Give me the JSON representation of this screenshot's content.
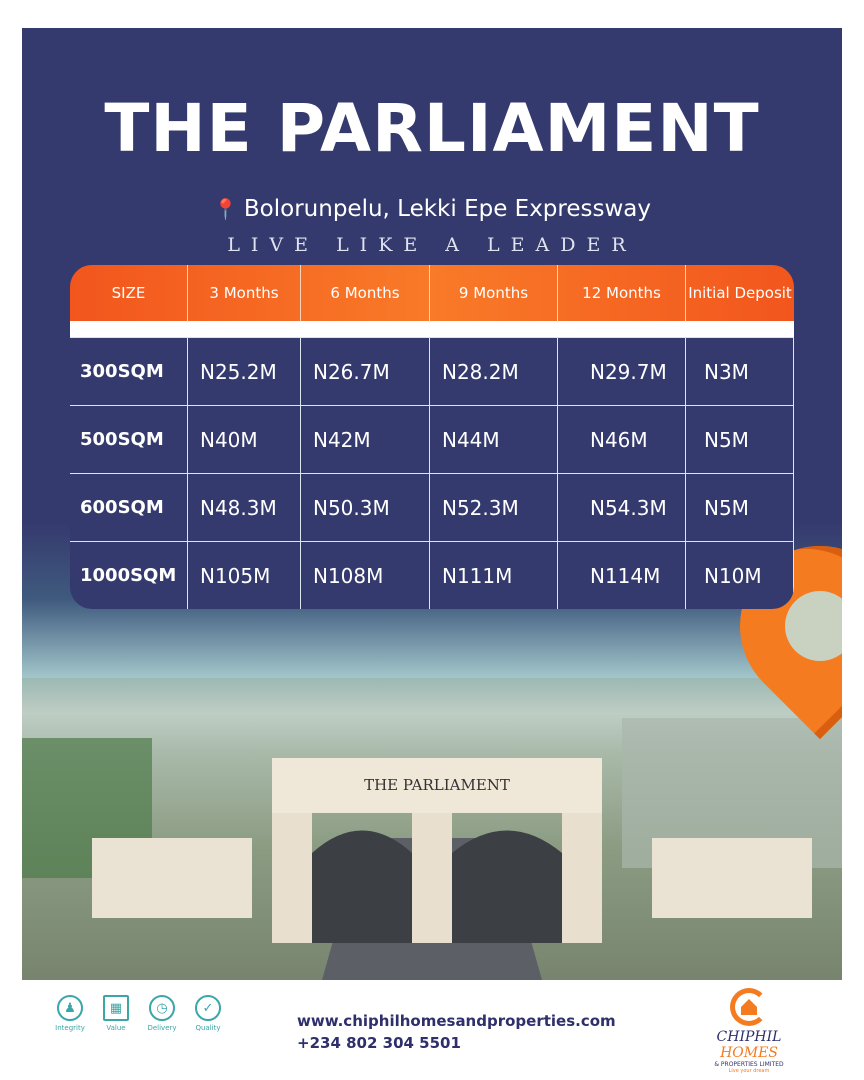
{
  "title": "THE PARLIAMENT",
  "location": "Bolorunpelu, Lekki Epe Expressway",
  "tagline": "LIVE LIKE A LEADER",
  "table": {
    "headers": [
      "SIZE",
      "3 Months",
      "6 Months",
      "9 Months",
      "12 Months",
      "Initial Deposit"
    ],
    "rows": [
      [
        "300SQM",
        "N25.2M",
        "N26.7M",
        "N28.2M",
        "N29.7M",
        "N3M"
      ],
      [
        "500SQM",
        "N40M",
        "N42M",
        "N44M",
        "N46M",
        "N5M"
      ],
      [
        "600SQM",
        "N48.3M",
        "N50.3M",
        "N52.3M",
        "N54.3M",
        "N5M"
      ],
      [
        "1000SQM",
        "N105M",
        "N108M",
        "N111M",
        "N114M",
        "N10M"
      ]
    ]
  },
  "gate_sign": "THE PARLIAMENT",
  "values": [
    {
      "label": "Integrity",
      "icon": "integrity-icon"
    },
    {
      "label": "Value",
      "icon": "building-icon"
    },
    {
      "label": "Delivery",
      "icon": "stopwatch-icon"
    },
    {
      "label": "Quality",
      "icon": "badge-icon"
    }
  ],
  "website": "www.chiphilhomesandproperties.com",
  "phone": "+234 802 304 5501",
  "logo": {
    "name_a": "CHIPHIL",
    "name_b": "HOMES",
    "sub": "& PROPERTIES LIMITED",
    "slogan": "Live your dream",
    "rc": "RC: 1795062"
  },
  "colors": {
    "navy": "#353a6e",
    "orange": "#f47b20",
    "teal": "#3aa6a8"
  }
}
